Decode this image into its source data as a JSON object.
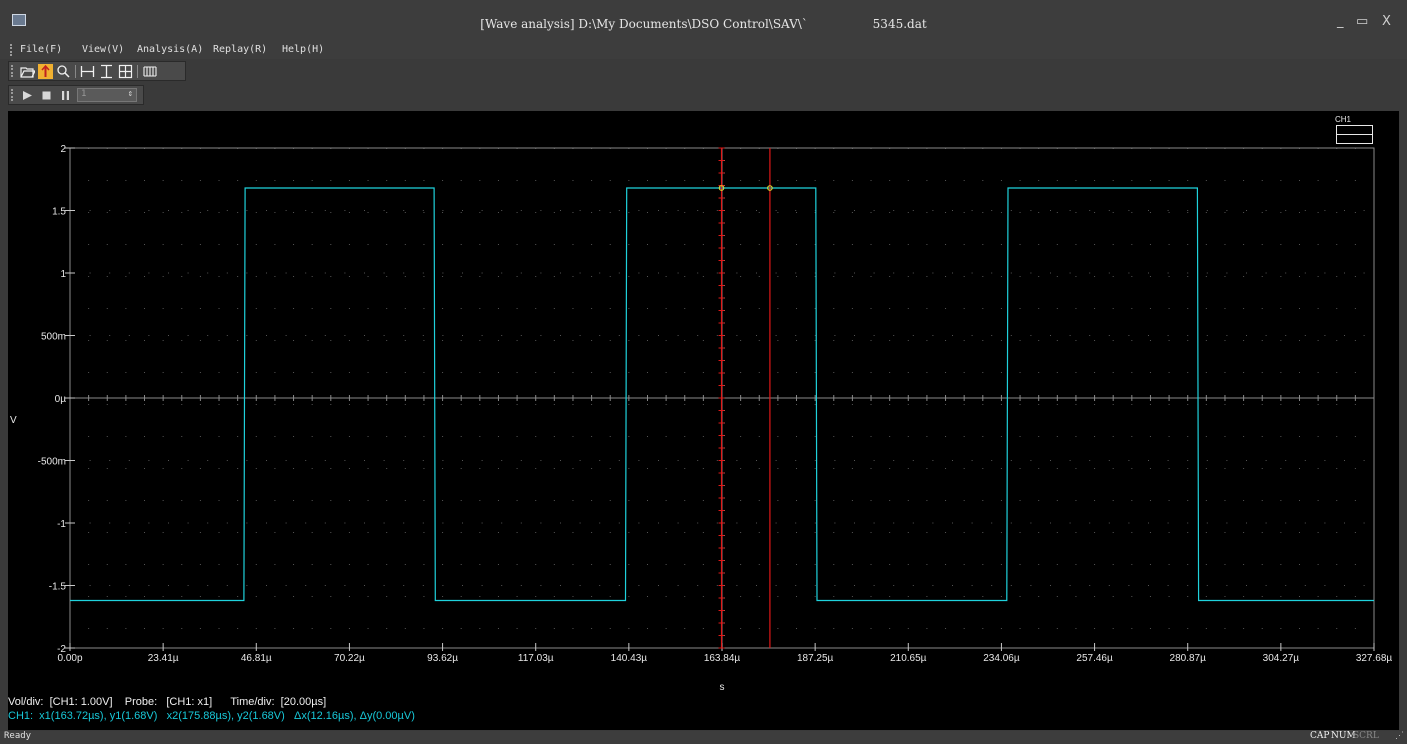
{
  "window": {
    "title": "[Wave analysis] D:\\My Documents\\DSO Control\\SAV\\`                 5345.dat",
    "controls": {
      "minimize": "_",
      "maximize": "▭",
      "close": "X"
    }
  },
  "menu": [
    {
      "label": "File(F)"
    },
    {
      "label": "View(V)"
    },
    {
      "label": "Analysis(A)"
    },
    {
      "label": "Replay(R)"
    },
    {
      "label": "Help(H)"
    }
  ],
  "toolbar1": {
    "buttons": [
      {
        "icon": "open-folder-icon"
      },
      {
        "icon": "cursor-pointer-icon",
        "active": true
      },
      {
        "icon": "zoom-icon"
      },
      {
        "icon": "horizontal-cursor-icon"
      },
      {
        "icon": "vertical-cursor-icon"
      },
      {
        "icon": "cross-cursor-icon"
      },
      {
        "icon": "bars-icon"
      }
    ]
  },
  "toolbar2": {
    "buttons": [
      {
        "icon": "play-icon"
      },
      {
        "icon": "stop-icon"
      },
      {
        "icon": "pause-icon"
      }
    ],
    "spin_value": "1"
  },
  "chart_data": {
    "type": "line",
    "title": "",
    "xlabel": "s",
    "ylabel": "V",
    "xlim": [
      0,
      327.68
    ],
    "ylim": [
      -2,
      2
    ],
    "x_ticks": [
      "0.00p",
      "23.41µ",
      "46.81µ",
      "70.22µ",
      "93.62µ",
      "117.03µ",
      "140.43µ",
      "163.84µ",
      "187.25µ",
      "210.65µ",
      "234.06µ",
      "257.46µ",
      "280.87µ",
      "304.27µ",
      "327.68µ"
    ],
    "y_ticks": [
      {
        "value": 2,
        "label": "2"
      },
      {
        "value": 1.5,
        "label": "1.5"
      },
      {
        "value": 1,
        "label": "1"
      },
      {
        "value": 0.5,
        "label": "500m"
      },
      {
        "value": 0,
        "label": "0µ"
      },
      {
        "value": -0.5,
        "label": "-500m"
      },
      {
        "value": -1,
        "label": "-1"
      },
      {
        "value": -1.5,
        "label": "-1.5"
      },
      {
        "value": -2,
        "label": "-2"
      }
    ],
    "grid": true,
    "legend": {
      "label": "CH1",
      "placement": "top-right"
    },
    "series": [
      {
        "name": "CH1",
        "color": "#1fd2dc",
        "x_unit": "µs",
        "x": [
          0,
          43.7,
          44.0,
          91.5,
          91.8,
          139.6,
          139.9,
          187.4,
          187.7,
          235.4,
          235.7,
          283.3,
          283.6,
          327.68
        ],
        "y": [
          -1.62,
          -1.62,
          1.68,
          1.68,
          -1.62,
          -1.62,
          1.68,
          1.68,
          -1.62,
          -1.62,
          1.68,
          1.68,
          -1.62,
          -1.62
        ]
      }
    ],
    "cursors": [
      {
        "label": "x1",
        "x": 163.72,
        "y": 1.68,
        "color": "#e01818",
        "marker_color": "#e8e030"
      },
      {
        "label": "x2",
        "x": 175.88,
        "y": 1.68,
        "color": "#e01818",
        "marker_color": "#e8e030"
      }
    ]
  },
  "info": {
    "line1": "Vol/div:  [CH1: 1.00V]    Probe:   [CH1: x1]      Time/div:  [20.00µs]",
    "line2": "CH1:  x1(163.72µs), y1(1.68V)   x2(175.88µs), y2(1.68V)   Δx(12.16µs), Δy(0.00µV)"
  },
  "status": {
    "text": "Ready",
    "indicators": [
      {
        "label": "CAP",
        "active": true
      },
      {
        "label": "NUM",
        "active": true
      },
      {
        "label": "SCRL",
        "active": false
      }
    ]
  }
}
